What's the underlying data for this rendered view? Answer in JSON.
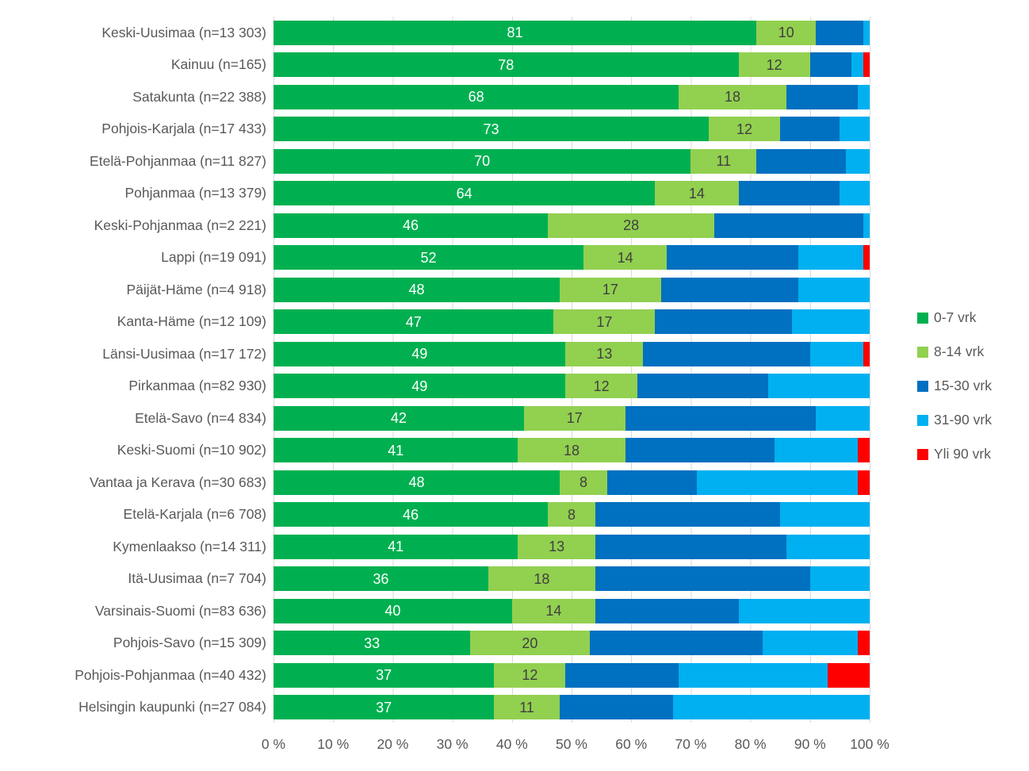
{
  "chart_data": {
    "type": "bar",
    "orientation": "horizontal",
    "stacked": true,
    "title": "",
    "xlabel": "",
    "ylabel": "",
    "xlim": [
      0,
      100
    ],
    "grid": true,
    "legend_position": "right",
    "x_ticks": [
      "0 %",
      "10 %",
      "20 %",
      "30 %",
      "40 %",
      "50 %",
      "60 %",
      "70 %",
      "80 %",
      "90 %",
      "100 %"
    ],
    "categories": [
      "Keski-Uusimaa (n=13 303)",
      "Kainuu (n=165)",
      "Satakunta (n=22 388)",
      "Pohjois-Karjala (n=17 433)",
      "Etelä-Pohjanmaa (n=11 827)",
      "Pohjanmaa (n=13 379)",
      "Keski-Pohjanmaa (n=2 221)",
      "Lappi (n=19 091)",
      "Päijät-Häme (n=4 918)",
      "Kanta-Häme (n=12 109)",
      "Länsi-Uusimaa (n=17 172)",
      "Pirkanmaa (n=82 930)",
      "Etelä-Savo (n=4 834)",
      "Keski-Suomi (n=10 902)",
      "Vantaa ja Kerava (n=30 683)",
      "Etelä-Karjala (n=6 708)",
      "Kymenlaakso (n=14 311)",
      "Itä-Uusimaa (n=7 704)",
      "Varsinais-Suomi (n=83 636)",
      "Pohjois-Savo (n=15 309)",
      "Pohjois-Pohjanmaa (n=40 432)",
      "Helsingin kaupunki (n=27 084)"
    ],
    "series": [
      {
        "name": "0-7 vrk",
        "color": "#00B050",
        "label_color": "#ffffff",
        "show_labels": true,
        "values": [
          81,
          78,
          68,
          73,
          70,
          64,
          46,
          52,
          48,
          47,
          49,
          49,
          42,
          41,
          48,
          46,
          41,
          36,
          40,
          33,
          37,
          37
        ]
      },
      {
        "name": "8-14 vrk",
        "color": "#92D050",
        "label_color": "#404040",
        "show_labels": true,
        "values": [
          10,
          12,
          18,
          12,
          11,
          14,
          28,
          14,
          17,
          17,
          13,
          12,
          17,
          18,
          8,
          8,
          13,
          18,
          14,
          20,
          12,
          11
        ]
      },
      {
        "name": "15-30 vrk",
        "color": "#0070C0",
        "label_color": "",
        "show_labels": false,
        "values": [
          8,
          7,
          12,
          10,
          15,
          17,
          25,
          22,
          23,
          23,
          28,
          22,
          32,
          25,
          15,
          31,
          32,
          36,
          24,
          29,
          19,
          19
        ]
      },
      {
        "name": "31-90 vrk",
        "color": "#00B0F0",
        "label_color": "",
        "show_labels": false,
        "values": [
          1,
          2,
          2,
          5,
          4,
          5,
          1,
          11,
          12,
          13,
          9,
          17,
          9,
          14,
          27,
          15,
          14,
          10,
          22,
          16,
          25,
          33
        ]
      },
      {
        "name": "Yli 90 vrk",
        "color": "#FF0000",
        "label_color": "",
        "show_labels": false,
        "values": [
          0,
          1,
          0,
          0,
          0,
          0,
          0,
          1,
          0,
          0,
          1,
          0,
          0,
          2,
          2,
          0,
          0,
          0,
          0,
          2,
          7,
          0
        ]
      }
    ]
  },
  "legend": {
    "items": [
      {
        "label": "0-7 vrk",
        "color": "#00B050"
      },
      {
        "label": "8-14 vrk",
        "color": "#92D050"
      },
      {
        "label": "15-30 vrk",
        "color": "#0070C0"
      },
      {
        "label": "31-90 vrk",
        "color": "#00B0F0"
      },
      {
        "label": "Yli 90 vrk",
        "color": "#FF0000"
      }
    ]
  },
  "style_colors": {
    "gridline": "#d9d9d9",
    "axis_text": "#595959",
    "background": "#ffffff"
  }
}
